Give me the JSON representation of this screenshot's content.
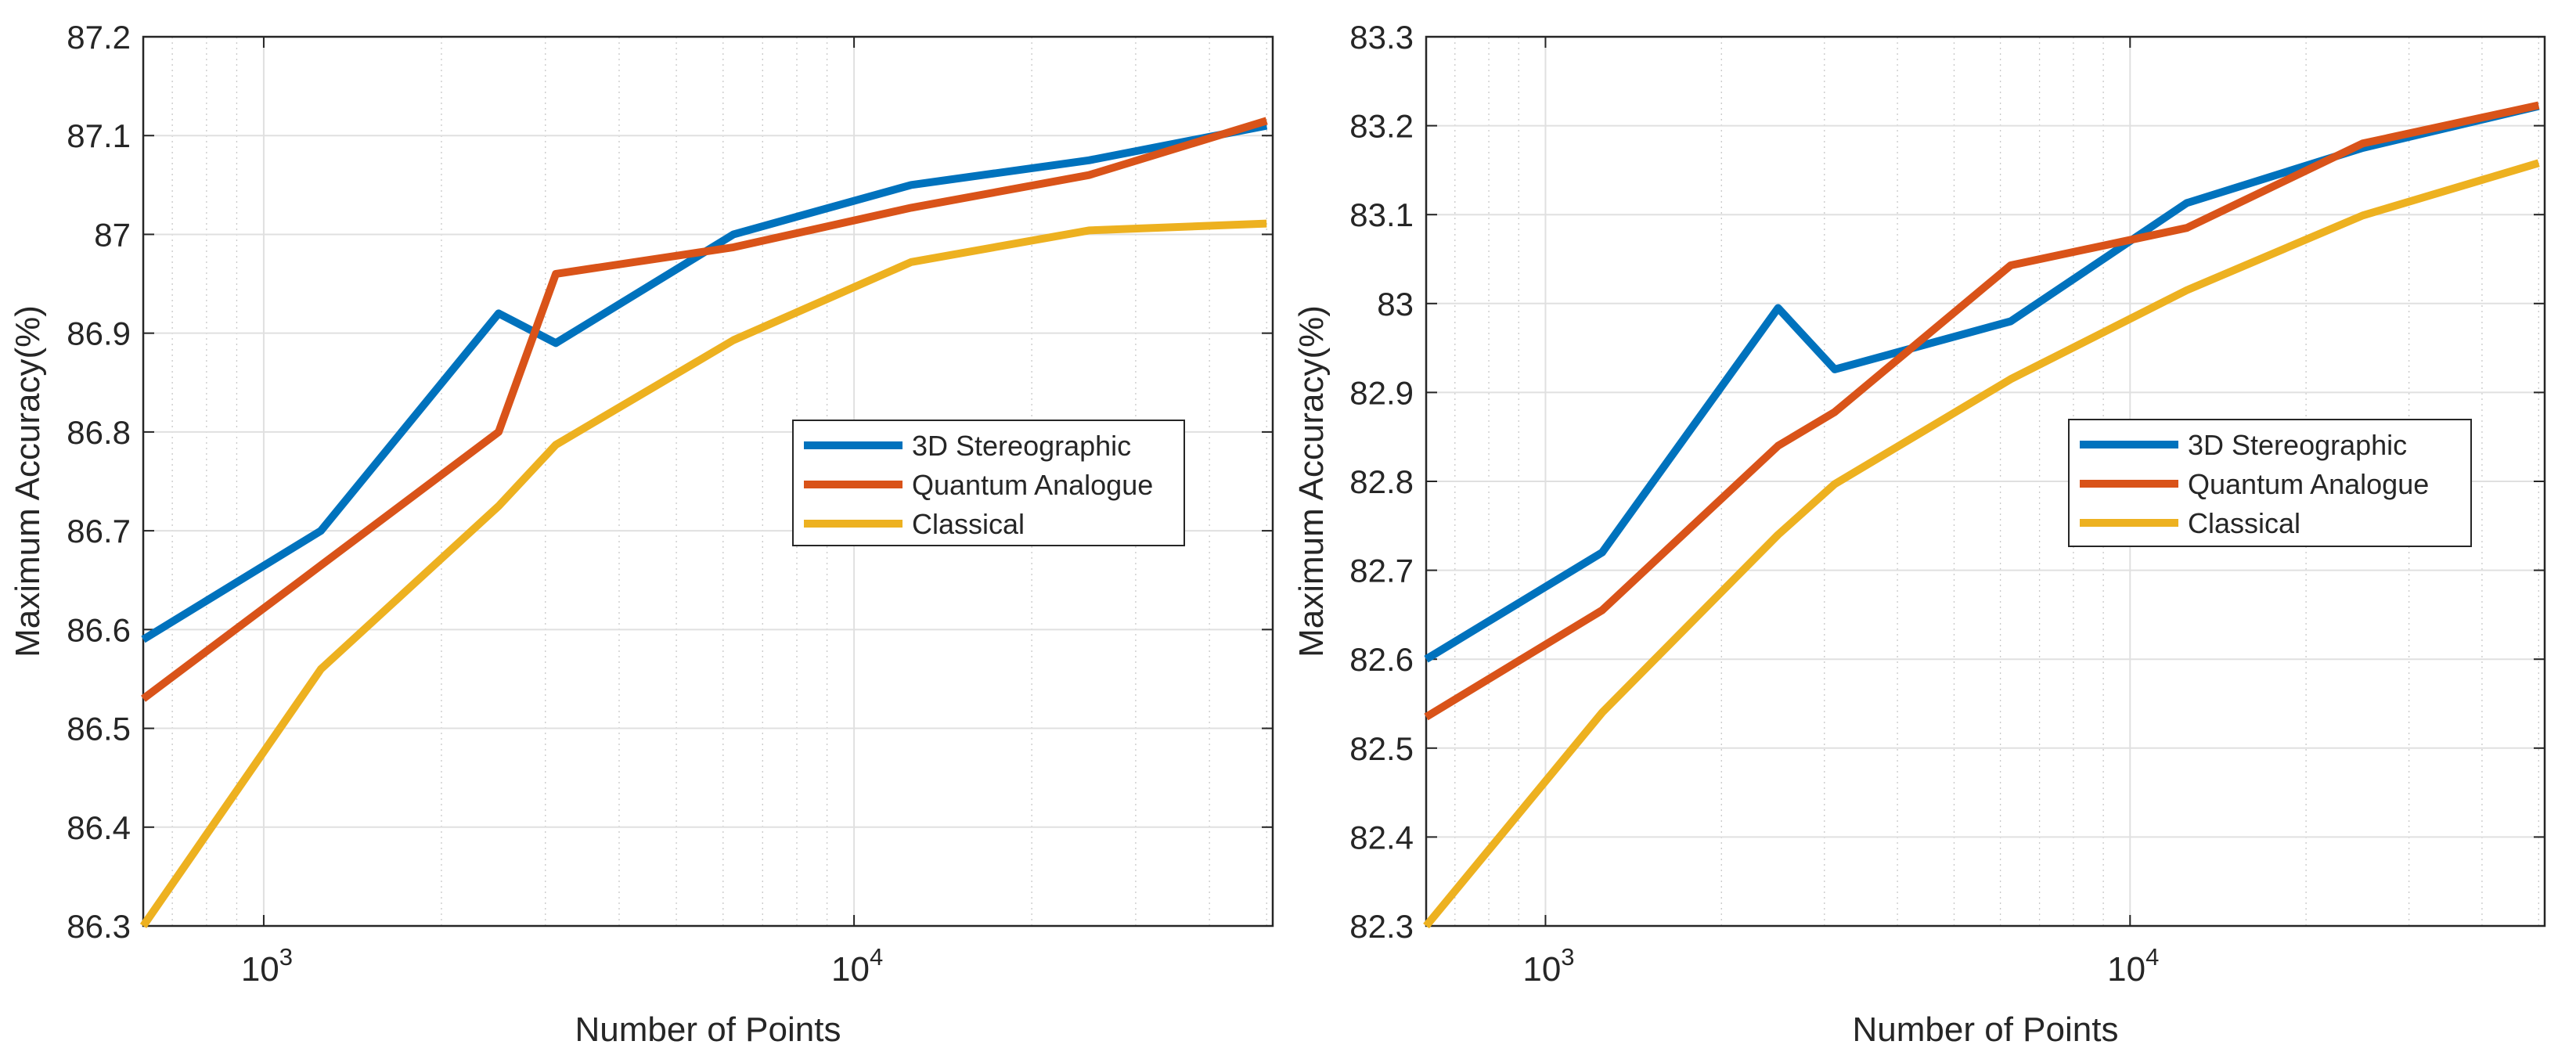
{
  "chart_data": [
    {
      "type": "line",
      "x_scale": "log",
      "xlabel": "Number of Points",
      "ylabel": "Maximum Accuracy(%)",
      "xlim": [
        625,
        51200
      ],
      "ylim": [
        86.3,
        87.2
      ],
      "y_ticks": [
        86.3,
        86.4,
        86.5,
        86.6,
        86.7,
        86.8,
        86.9,
        87.0,
        87.1,
        87.2
      ],
      "y_tick_labels": [
        "86.3",
        "86.4",
        "86.5",
        "86.6",
        "86.7",
        "86.8",
        "86.9",
        "87",
        "87.1",
        "87.2"
      ],
      "x_tick_labels": [
        {
          "base": "10",
          "exp": "3",
          "value": 1000
        },
        {
          "base": "10",
          "exp": "4",
          "value": 10000
        }
      ],
      "grid": true,
      "legend_position": "center-right",
      "x": [
        625,
        1250,
        2500,
        3125,
        6250,
        12500,
        25000,
        50000
      ],
      "series": [
        {
          "name": "3D Stereographic",
          "color": "#0072BD",
          "values": [
            86.59,
            86.7,
            86.92,
            86.89,
            87.0,
            87.05,
            87.075,
            87.11
          ]
        },
        {
          "name": "Quantum Analogue",
          "color": "#D95319",
          "values": [
            86.53,
            86.665,
            86.8,
            86.96,
            86.987,
            87.027,
            87.06,
            87.115
          ]
        },
        {
          "name": "Classical",
          "color": "#EDB120",
          "values": [
            86.3,
            86.56,
            86.725,
            86.787,
            86.893,
            86.972,
            87.004,
            87.011
          ]
        }
      ]
    },
    {
      "type": "line",
      "x_scale": "log",
      "xlabel": "Number of Points",
      "ylabel": "Maximum Accuracy(%)",
      "xlim": [
        625,
        51200
      ],
      "ylim": [
        82.3,
        83.3
      ],
      "y_ticks": [
        82.3,
        82.4,
        82.5,
        82.6,
        82.7,
        82.8,
        82.9,
        83.0,
        83.1,
        83.2,
        83.3
      ],
      "y_tick_labels": [
        "82.3",
        "82.4",
        "82.5",
        "82.6",
        "82.7",
        "82.8",
        "82.9",
        "83",
        "83.1",
        "83.2",
        "83.3"
      ],
      "x_tick_labels": [
        {
          "base": "10",
          "exp": "3",
          "value": 1000
        },
        {
          "base": "10",
          "exp": "4",
          "value": 10000
        }
      ],
      "grid": true,
      "legend_position": "center-right",
      "x": [
        625,
        1250,
        2500,
        3125,
        6250,
        12500,
        25000,
        50000
      ],
      "series": [
        {
          "name": "3D Stereographic",
          "color": "#0072BD",
          "values": [
            82.6,
            82.72,
            82.995,
            82.926,
            82.98,
            83.113,
            83.175,
            83.222
          ]
        },
        {
          "name": "Quantum Analogue",
          "color": "#D95319",
          "values": [
            82.535,
            82.655,
            82.84,
            82.878,
            83.043,
            83.085,
            83.18,
            83.223
          ]
        },
        {
          "name": "Classical",
          "color": "#EDB120",
          "values": [
            82.3,
            82.54,
            82.74,
            82.797,
            82.915,
            83.015,
            83.099,
            83.158
          ]
        }
      ]
    }
  ]
}
